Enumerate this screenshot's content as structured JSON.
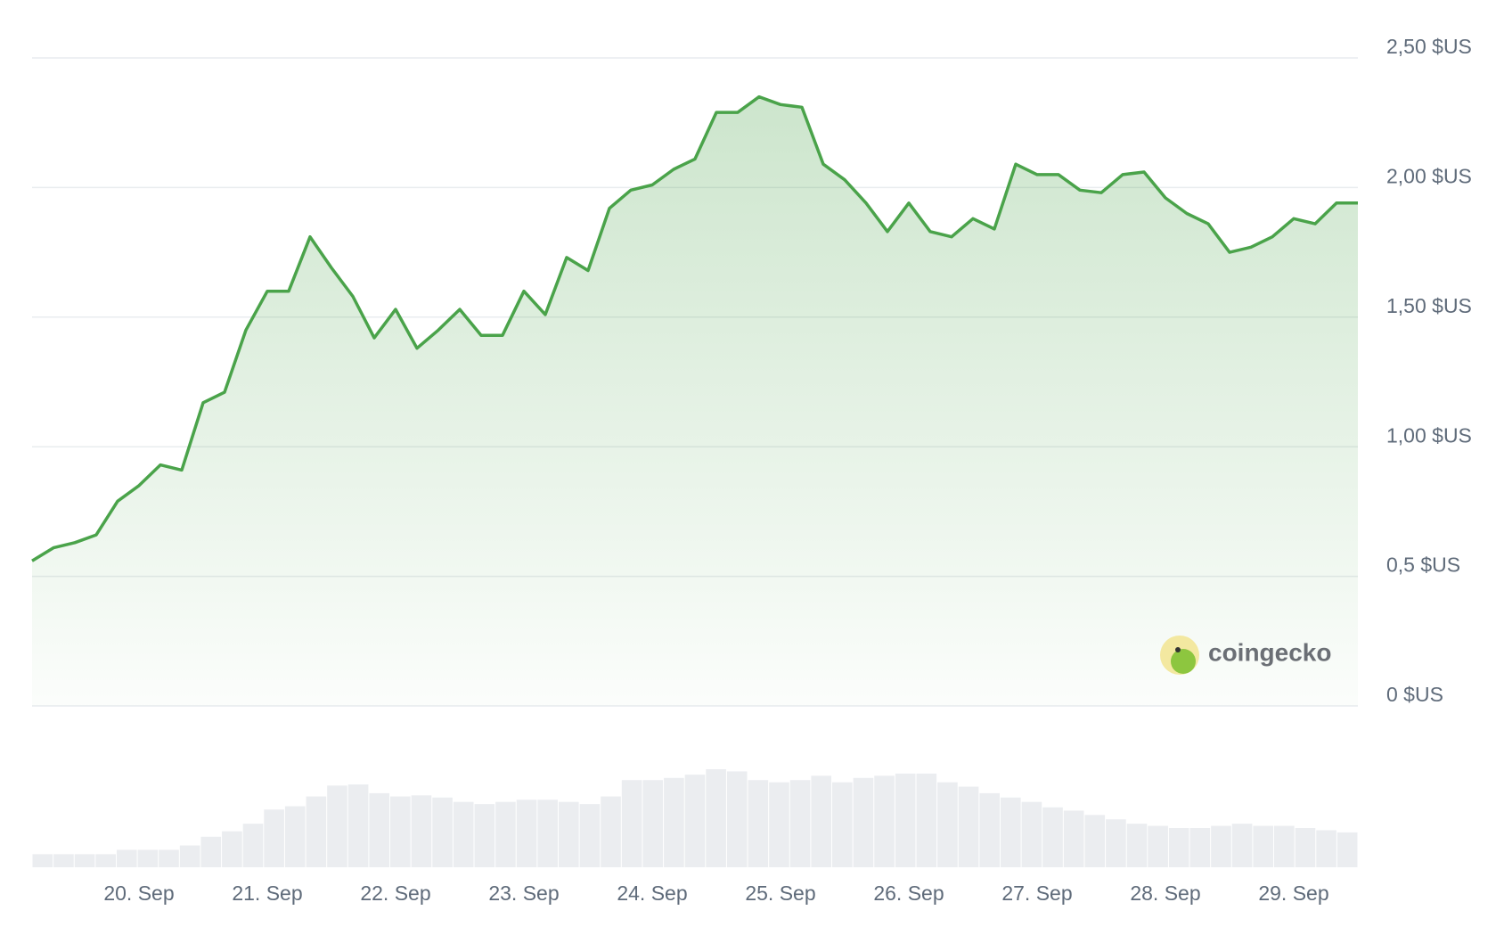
{
  "chart_data": {
    "type": "line",
    "color": "#4aa34a",
    "values": [
      0.56,
      0.61,
      0.63,
      0.66,
      0.79,
      0.85,
      0.93,
      0.91,
      1.17,
      1.21,
      1.45,
      1.6,
      1.6,
      1.81,
      1.69,
      1.58,
      1.42,
      1.53,
      1.38,
      1.45,
      1.53,
      1.43,
      1.43,
      1.6,
      1.51,
      1.73,
      1.68,
      1.92,
      1.99,
      2.01,
      2.07,
      2.11,
      2.29,
      2.29,
      2.35,
      2.32,
      2.31,
      2.09,
      2.03,
      1.94,
      1.83,
      1.94,
      1.83,
      1.81,
      1.88,
      1.84,
      2.09,
      2.05,
      2.05,
      1.99,
      1.98,
      2.05,
      2.06,
      1.96,
      1.9,
      1.86,
      1.75,
      1.77,
      1.81,
      1.88,
      1.86,
      1.94,
      1.94
    ],
    "volume": {
      "color": "#ebedf0",
      "values": [
        12,
        12,
        12,
        12,
        16,
        16,
        16,
        20,
        28,
        33,
        40,
        53,
        56,
        65,
        75,
        76,
        68,
        65,
        66,
        64,
        60,
        58,
        60,
        62,
        62,
        60,
        58,
        65,
        80,
        80,
        82,
        85,
        90,
        88,
        80,
        78,
        80,
        84,
        78,
        82,
        84,
        86,
        86,
        78,
        74,
        68,
        64,
        60,
        55,
        52,
        48,
        44,
        40,
        38,
        36,
        36,
        38,
        40,
        38,
        38,
        36,
        34,
        32
      ]
    },
    "xlim": [
      0,
      62
    ],
    "xticks": [
      {
        "value": 5,
        "label": "20. Sep"
      },
      {
        "value": 11,
        "label": "21. Sep"
      },
      {
        "value": 17,
        "label": "22. Sep"
      },
      {
        "value": 23,
        "label": "23. Sep"
      },
      {
        "value": 29,
        "label": "24. Sep"
      },
      {
        "value": 35,
        "label": "25. Sep"
      },
      {
        "value": 41,
        "label": "26. Sep"
      },
      {
        "value": 47,
        "label": "27. Sep"
      },
      {
        "value": 53,
        "label": "28. Sep"
      },
      {
        "value": 59,
        "label": "29. Sep"
      }
    ],
    "ylim": [
      0,
      2.5
    ],
    "yticks": [
      {
        "value": 0,
        "label": "0 $US"
      },
      {
        "value": 0.5,
        "label": "0,5 $US"
      },
      {
        "value": 1,
        "label": "1,00 $US"
      },
      {
        "value": 1.5,
        "label": "1,50 $US"
      },
      {
        "value": 2,
        "label": "2,00 $US"
      },
      {
        "value": 2.5,
        "label": "2,50 $US"
      }
    ],
    "grid": true,
    "watermark": "coingecko"
  }
}
